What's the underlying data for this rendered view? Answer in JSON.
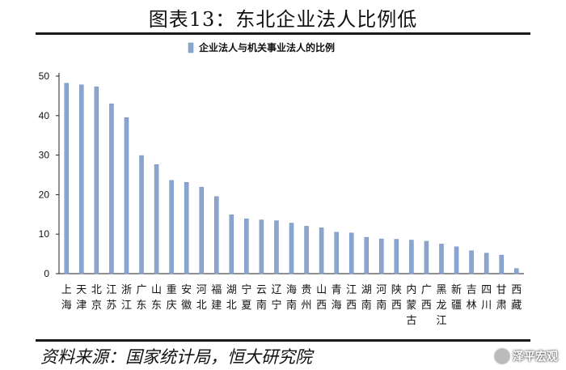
{
  "header": {
    "title": "图表13：东北企业法人比例低"
  },
  "source": {
    "text": "资料来源：国家统计局，恒大研究院"
  },
  "watermark": {
    "text": "泽平宏观",
    "icon": "wechat-icon"
  },
  "chart_data": {
    "type": "bar",
    "title": "",
    "xlabel": "",
    "ylabel": "",
    "ylim": [
      0,
      50
    ],
    "yticks": [
      0,
      10,
      20,
      30,
      40,
      50
    ],
    "grid": false,
    "legend_position": "top-left",
    "bar_color": "#8aa6cf",
    "series": [
      {
        "name": "企业法人与机关事业法人的比例",
        "values": [
          48.2,
          47.8,
          47.3,
          43.0,
          39.5,
          29.9,
          27.6,
          23.6,
          23.1,
          21.9,
          19.5,
          14.9,
          13.9,
          13.6,
          13.4,
          12.8,
          12.0,
          11.6,
          10.5,
          10.3,
          9.2,
          8.8,
          8.7,
          8.5,
          8.2,
          7.5,
          6.8,
          5.8,
          5.2,
          4.7,
          1.3
        ]
      }
    ],
    "categories": [
      "上海",
      "天津",
      "北京",
      "江苏",
      "浙江",
      "广东",
      "山东",
      "重庆",
      "安徽",
      "河北",
      "福建",
      "湖北",
      "宁夏",
      "云南",
      "辽宁",
      "海南",
      "贵州",
      "山西",
      "青海",
      "江西",
      "湖南",
      "河南",
      "陕西",
      "内蒙古",
      "广西",
      "黑龙江",
      "新疆",
      "吉林",
      "四川",
      "甘肃",
      "西藏"
    ]
  }
}
